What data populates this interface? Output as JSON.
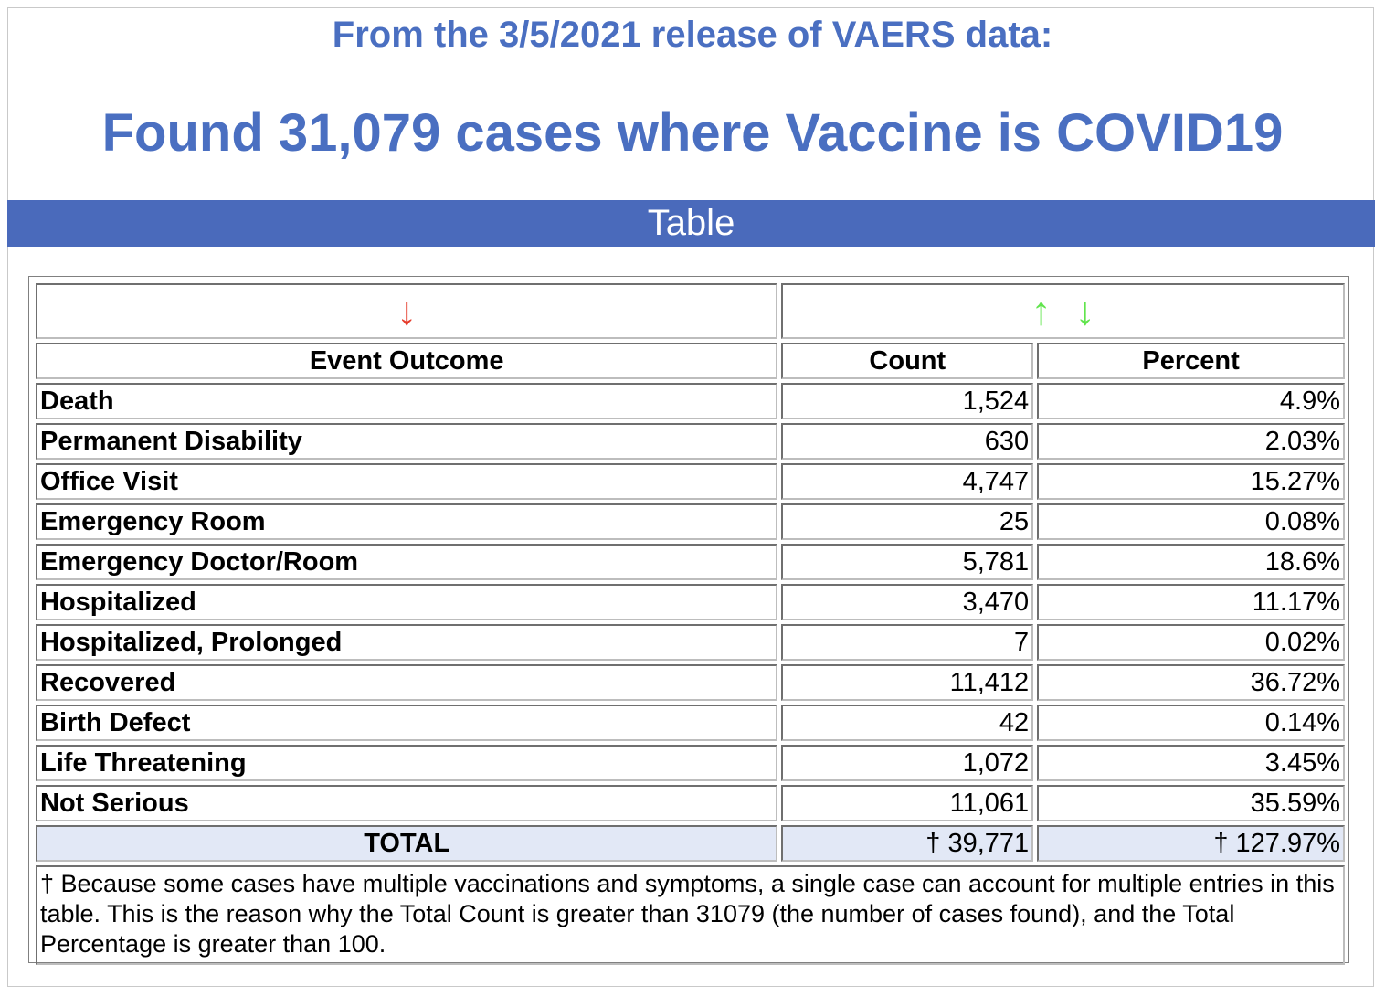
{
  "header": {
    "subtitle": "From the 3/5/2021 release of VAERS data:",
    "headline": "Found 31,079 cases where Vaccine is COVID19"
  },
  "section_bar": {
    "label": "Table"
  },
  "sort_controls": {
    "outcome_sort": "↓",
    "count_sort_up": "↑",
    "count_sort_down": "↓"
  },
  "colors": {
    "accent": "#4a6abb",
    "title": "#4a6fc1",
    "sort_active": "#e53b2b",
    "sort_available": "#61e44d",
    "total_row": "#e2e8f6"
  },
  "table": {
    "headers": {
      "outcome": "Event Outcome",
      "count": "Count",
      "percent": "Percent"
    },
    "rows": [
      {
        "outcome": "Death",
        "count": "1,524",
        "percent": "4.9%"
      },
      {
        "outcome": "Permanent Disability",
        "count": "630",
        "percent": "2.03%"
      },
      {
        "outcome": "Office Visit",
        "count": "4,747",
        "percent": "15.27%"
      },
      {
        "outcome": "Emergency Room",
        "count": "25",
        "percent": "0.08%"
      },
      {
        "outcome": "Emergency Doctor/Room",
        "count": "5,781",
        "percent": "18.6%"
      },
      {
        "outcome": "Hospitalized",
        "count": "3,470",
        "percent": "11.17%"
      },
      {
        "outcome": "Hospitalized, Prolonged",
        "count": "7",
        "percent": "0.02%"
      },
      {
        "outcome": "Recovered",
        "count": "11,412",
        "percent": "36.72%"
      },
      {
        "outcome": "Birth Defect",
        "count": "42",
        "percent": "0.14%"
      },
      {
        "outcome": "Life Threatening",
        "count": "1,072",
        "percent": "3.45%"
      },
      {
        "outcome": "Not Serious",
        "count": "11,061",
        "percent": "35.59%"
      }
    ],
    "total": {
      "label": "TOTAL",
      "count": "† 39,771",
      "percent": "† 127.97%"
    },
    "footnote": "† Because some cases have multiple vaccinations and symptoms, a single case can account for multiple entries in this table. This is the reason why the Total Count is greater than 31079 (the number of cases found), and the Total Percentage is greater than 100."
  }
}
